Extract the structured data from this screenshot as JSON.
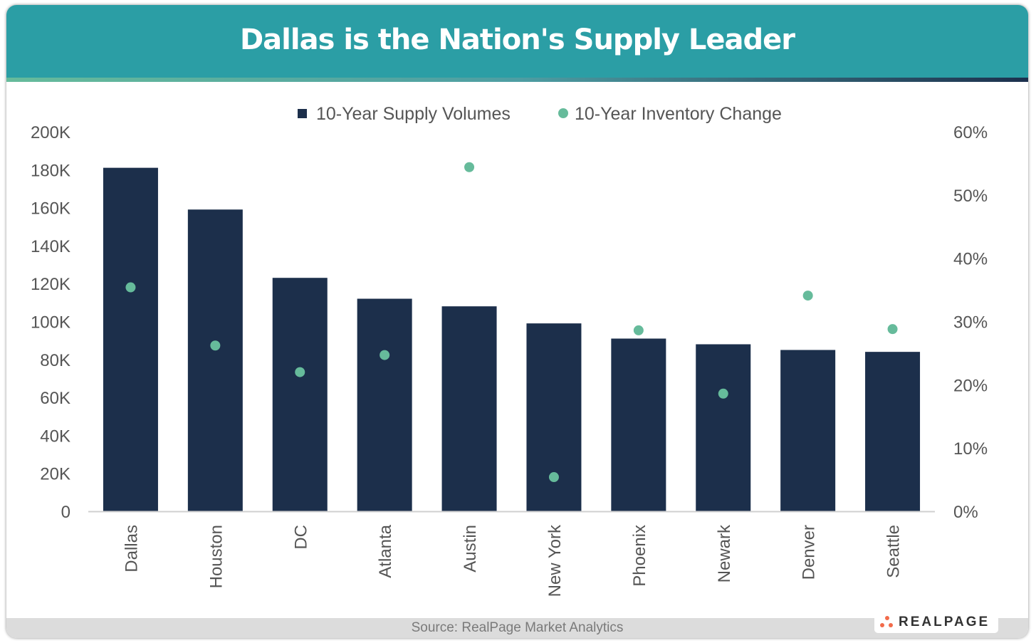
{
  "title": "Dallas is the Nation's Supply Leader",
  "source": "Source: RealPage Market Analytics",
  "logo_text": "REALPAGE",
  "colors": {
    "header": "#2b9ea5",
    "bar": "#1c2f4b",
    "dot": "#66bb9b",
    "logo_dots": "#f26b4a"
  },
  "chart_data": {
    "type": "bar",
    "title": "Dallas is the Nation's Supply Leader",
    "categories": [
      "Dallas",
      "Houston",
      "DC",
      "Atlanta",
      "Austin",
      "New York",
      "Phoenix",
      "Newark",
      "Denver",
      "Seattle"
    ],
    "series": [
      {
        "name": "10-Year Supply Volumes",
        "type": "bar",
        "axis": "left",
        "values": [
          181000,
          159000,
          123000,
          112000,
          108000,
          99000,
          91000,
          88000,
          85000,
          84000
        ]
      },
      {
        "name": "10-Year Inventory Change",
        "type": "scatter",
        "axis": "right",
        "values": [
          35.4,
          26.2,
          22.0,
          24.7,
          54.4,
          5.4,
          28.6,
          18.6,
          34.1,
          28.8
        ]
      }
    ],
    "y_left": {
      "range": [
        0,
        200000
      ],
      "ticks": [
        "0",
        "20K",
        "40K",
        "60K",
        "80K",
        "100K",
        "120K",
        "140K",
        "160K",
        "180K",
        "200K"
      ]
    },
    "y_right": {
      "range": [
        0,
        60
      ],
      "ticks": [
        "0%",
        "10%",
        "20%",
        "30%",
        "40%",
        "50%",
        "60%"
      ]
    },
    "grid": false,
    "legend": "top"
  }
}
